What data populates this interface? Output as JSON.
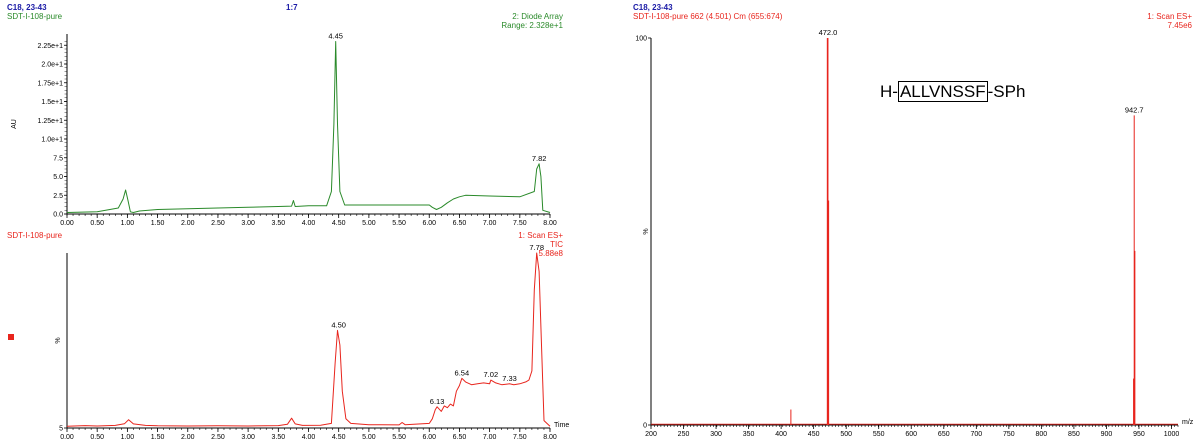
{
  "colors": {
    "uv": "#2a8a2a",
    "ms": "#e8251d",
    "header": "#1a1aa6",
    "axis": "#000000"
  },
  "left_header": {
    "method": "C18, 23-43",
    "sample": "SDT-I-108-pure",
    "ratio": "1:7"
  },
  "right_header": {
    "method": "C18, 23-43",
    "scan_info": "SDT-I-108-pure 662 (4.501) Cm (655:674)",
    "detector_line1": "1: Scan ES+",
    "detector_line2": "7.45e6"
  },
  "peptide": {
    "prefix": "H-",
    "sequence": "ALLVNSSF",
    "suffix": "-SPh"
  },
  "chart_data": [
    {
      "type": "line",
      "id": "uv",
      "detector_line1": "2: Diode Array",
      "detector_line2": "Range: 2.328e+1",
      "ylabel": "AU",
      "xlim": [
        0.0,
        8.0
      ],
      "ylim": [
        0.0,
        24.0
      ],
      "x_ticks": [
        "0.00",
        "0.50",
        "1.00",
        "1.50",
        "2.00",
        "2.50",
        "3.00",
        "3.50",
        "4.00",
        "4.50",
        "5.00",
        "5.50",
        "6.00",
        "6.50",
        "7.00",
        "7.50",
        "8.00"
      ],
      "y_ticks": [
        {
          "value": 0.0,
          "label": "0.0"
        },
        {
          "value": 2.5,
          "label": "2.5"
        },
        {
          "value": 5.0,
          "label": "5.0"
        },
        {
          "value": 7.5,
          "label": "7.5"
        },
        {
          "value": 10.0,
          "label": "1.0e+1"
        },
        {
          "value": 12.5,
          "label": "1.25e+1"
        },
        {
          "value": 15.0,
          "label": "1.5e+1"
        },
        {
          "value": 17.5,
          "label": "1.75e+1"
        },
        {
          "value": 20.0,
          "label": "2.0e+1"
        },
        {
          "value": 22.5,
          "label": "2.25e+1"
        }
      ],
      "series": [
        {
          "x": [
            0.0,
            0.5,
            0.85,
            0.93,
            0.97,
            1.01,
            1.05,
            1.1,
            1.2,
            1.5,
            2.0,
            2.5,
            3.0,
            3.5,
            3.72,
            3.75,
            3.78,
            4.0,
            4.3,
            4.38,
            4.42,
            4.45,
            4.48,
            4.52,
            4.6,
            5.0,
            5.5,
            6.0,
            6.05,
            6.12,
            6.2,
            6.3,
            6.4,
            6.5,
            6.6,
            7.0,
            7.5,
            7.74,
            7.78,
            7.82,
            7.85,
            7.88,
            8.0
          ],
          "y": [
            0.2,
            0.3,
            0.8,
            2.0,
            3.2,
            1.8,
            0.3,
            0.2,
            0.4,
            0.6,
            0.7,
            0.8,
            0.9,
            1.0,
            1.05,
            1.8,
            1.0,
            1.1,
            1.1,
            3.0,
            12.0,
            23.0,
            12.0,
            3.0,
            1.2,
            1.2,
            1.2,
            1.2,
            0.9,
            0.6,
            0.9,
            1.5,
            2.0,
            2.3,
            2.5,
            2.4,
            2.3,
            3.0,
            6.0,
            6.7,
            5.0,
            0.5,
            0.2
          ]
        }
      ],
      "annotations": [
        {
          "x": 4.45,
          "y": 23.0,
          "text": "4.45"
        },
        {
          "x": 7.82,
          "y": 6.7,
          "text": "7.82"
        }
      ]
    },
    {
      "type": "line",
      "id": "tic",
      "sample": "SDT-I-108-pure",
      "detector_line1": "1: Scan ES+",
      "detector_line2": "TIC",
      "detector_line3": "5.88e8",
      "ylabel": "%",
      "xlabel": "Time",
      "xlim": [
        0.0,
        8.0
      ],
      "ylim": [
        5,
        100
      ],
      "x_ticks": [
        "0.00",
        "0.50",
        "1.00",
        "1.50",
        "2.00",
        "2.50",
        "3.00",
        "3.50",
        "4.00",
        "4.50",
        "5.00",
        "5.50",
        "6.00",
        "6.50",
        "7.00",
        "7.50",
        "8.00"
      ],
      "y_ticks": [
        {
          "value": 5,
          "label": "5"
        }
      ],
      "series": [
        {
          "x": [
            0.0,
            0.3,
            0.5,
            0.8,
            0.95,
            1.02,
            1.1,
            1.3,
            1.5,
            2.0,
            2.5,
            3.0,
            3.5,
            3.65,
            3.72,
            3.78,
            3.9,
            4.2,
            4.38,
            4.44,
            4.48,
            4.52,
            4.56,
            4.62,
            4.7,
            5.0,
            5.5,
            5.55,
            5.6,
            6.0,
            6.05,
            6.1,
            6.13,
            6.2,
            6.25,
            6.3,
            6.35,
            6.4,
            6.45,
            6.5,
            6.54,
            6.6,
            6.7,
            6.8,
            6.9,
            7.0,
            7.02,
            7.1,
            7.2,
            7.33,
            7.4,
            7.5,
            7.6,
            7.65,
            7.7,
            7.74,
            7.78,
            7.82,
            7.86,
            7.9,
            8.0
          ],
          "y": [
            6,
            6.3,
            6.1,
            6.4,
            7.3,
            9.5,
            7.2,
            6.4,
            6.2,
            6.1,
            6.2,
            6.1,
            6.3,
            7.0,
            10.3,
            7.2,
            6.4,
            6.5,
            7.5,
            40,
            58,
            50,
            25,
            10,
            7.5,
            6.8,
            6.7,
            8.0,
            6.8,
            7.5,
            10,
            15,
            16.5,
            14,
            17,
            16,
            18,
            17,
            25,
            28,
            32,
            30,
            28.5,
            29,
            29.5,
            29,
            31,
            29.5,
            28.5,
            29,
            28.5,
            29,
            30,
            31,
            36,
            80,
            100,
            90,
            50,
            9,
            6
          ]
        }
      ],
      "annotations": [
        {
          "x": 4.5,
          "y": 58,
          "text": "4.50"
        },
        {
          "x": 6.13,
          "y": 16.5,
          "text": "6.13"
        },
        {
          "x": 6.54,
          "y": 32,
          "text": "6.54"
        },
        {
          "x": 7.02,
          "y": 31,
          "text": "7.02"
        },
        {
          "x": 7.33,
          "y": 29,
          "text": "7.33"
        },
        {
          "x": 7.78,
          "y": 100,
          "text": "7.78"
        }
      ]
    },
    {
      "type": "bar",
      "id": "mass_spectrum",
      "ylabel": "%",
      "xlabel": "m/z",
      "xlim": [
        200,
        1010
      ],
      "ylim": [
        0,
        100
      ],
      "x_ticks": [
        "200",
        "250",
        "300",
        "350",
        "400",
        "450",
        "500",
        "550",
        "600",
        "650",
        "700",
        "750",
        "800",
        "850",
        "900",
        "950",
        "1000"
      ],
      "y_ticks": [
        {
          "value": 0,
          "label": "0"
        },
        {
          "value": 100,
          "label": "100"
        }
      ],
      "peaks": [
        {
          "mz": 415,
          "intensity": 4
        },
        {
          "mz": 471,
          "intensity": 100
        },
        {
          "mz": 472.0,
          "intensity": 100
        },
        {
          "mz": 473,
          "intensity": 58
        },
        {
          "mz": 941.7,
          "intensity": 12
        },
        {
          "mz": 942.7,
          "intensity": 80
        },
        {
          "mz": 943.7,
          "intensity": 45
        }
      ],
      "annotations": [
        {
          "x": 472.0,
          "y": 100,
          "text": "472.0"
        },
        {
          "x": 942.7,
          "y": 80,
          "text": "942.7"
        }
      ]
    }
  ]
}
